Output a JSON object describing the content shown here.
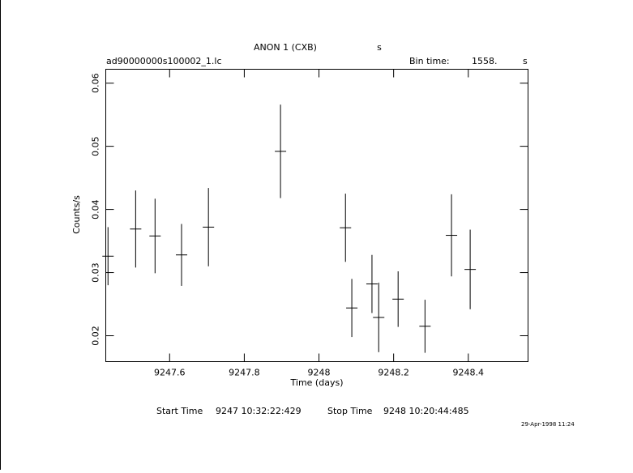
{
  "chart_data": {
    "type": "errorbar",
    "title": "ANON 1 (CXB)",
    "title_unit": "s",
    "file_label": "ad90000000s100002_1.lc",
    "bin_time_label": "Bin time:",
    "bin_time": "1558.",
    "bin_time_unit": "s",
    "x_label": "Time (days)",
    "y_label": "Counts/s",
    "start_time_label": "Start Time",
    "start_time": "9247 10:32:22:429",
    "stop_time_label": "Stop Time",
    "stop_time": "9248 10:20:44:485",
    "date_stamp": "29-Apr-1998 11:24",
    "color": "#000000",
    "xlim": [
      9247.429,
      9248.56
    ],
    "ylim": [
      0.0159,
      0.0622
    ],
    "xticks": [
      9247.6,
      9247.8,
      9248,
      9248.2,
      9248.4
    ],
    "yticks": [
      0.02,
      0.03,
      0.04,
      0.05,
      0.06
    ],
    "x": [
      9247.435,
      9247.509,
      9247.561,
      9247.632,
      9247.704,
      9247.897,
      9248.071,
      9248.088,
      9248.142,
      9248.16,
      9248.212,
      9248.284,
      9248.355,
      9248.405
    ],
    "values": [
      0.0326,
      0.0369,
      0.0358,
      0.0328,
      0.0372,
      0.0492,
      0.0371,
      0.0244,
      0.0282,
      0.0229,
      0.0258,
      0.0215,
      0.0359,
      0.0305
    ],
    "yerr": [
      0.0046,
      0.0061,
      0.0059,
      0.0049,
      0.0062,
      0.0074,
      0.0054,
      0.0046,
      0.0046,
      0.0055,
      0.0044,
      0.0042,
      0.0065,
      0.0063
    ]
  }
}
